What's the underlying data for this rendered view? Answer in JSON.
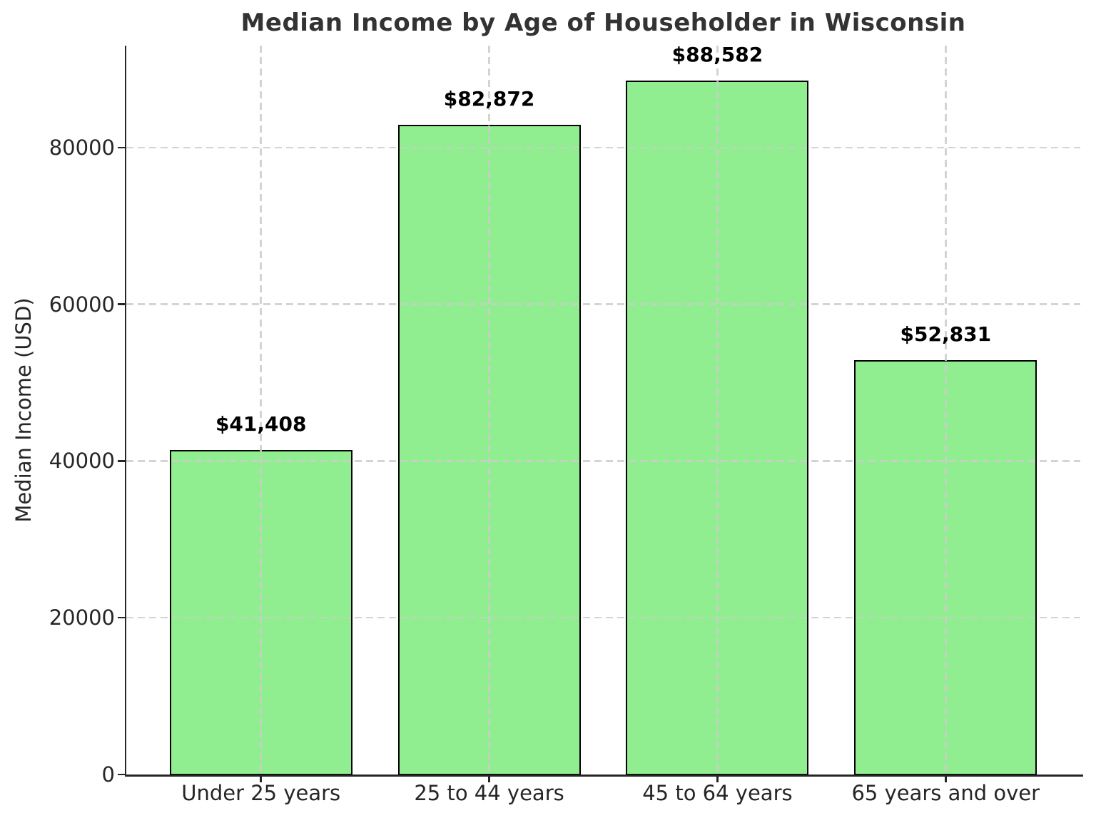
{
  "chart_data": {
    "type": "bar",
    "title": "Median Income by Age of Householder in Wisconsin",
    "xlabel": "",
    "ylabel": "Median Income (USD)",
    "categories": [
      "Under 25 years",
      "25 to 44 years",
      "45 to 64 years",
      "65 years and over"
    ],
    "values": [
      41408,
      82872,
      88582,
      52831
    ],
    "value_labels": [
      "$41,408",
      "$82,872",
      "$88,582",
      "$52,831"
    ],
    "yticks": [
      0,
      20000,
      40000,
      60000,
      80000
    ],
    "ylim": [
      0,
      93011
    ],
    "xlim": [
      -0.59,
      3.59
    ],
    "bar_width_fraction": 0.8,
    "grid": true,
    "grid_style": "dashed",
    "legend_position": "none",
    "colors": {
      "bar_fill": "#90EE90",
      "bar_edge": "#000000",
      "grid": "#cccccc",
      "axis": "#262626",
      "title_text": "#333333",
      "tick_text": "#262626",
      "value_label_text": "#000000",
      "background": "#ffffff"
    }
  }
}
